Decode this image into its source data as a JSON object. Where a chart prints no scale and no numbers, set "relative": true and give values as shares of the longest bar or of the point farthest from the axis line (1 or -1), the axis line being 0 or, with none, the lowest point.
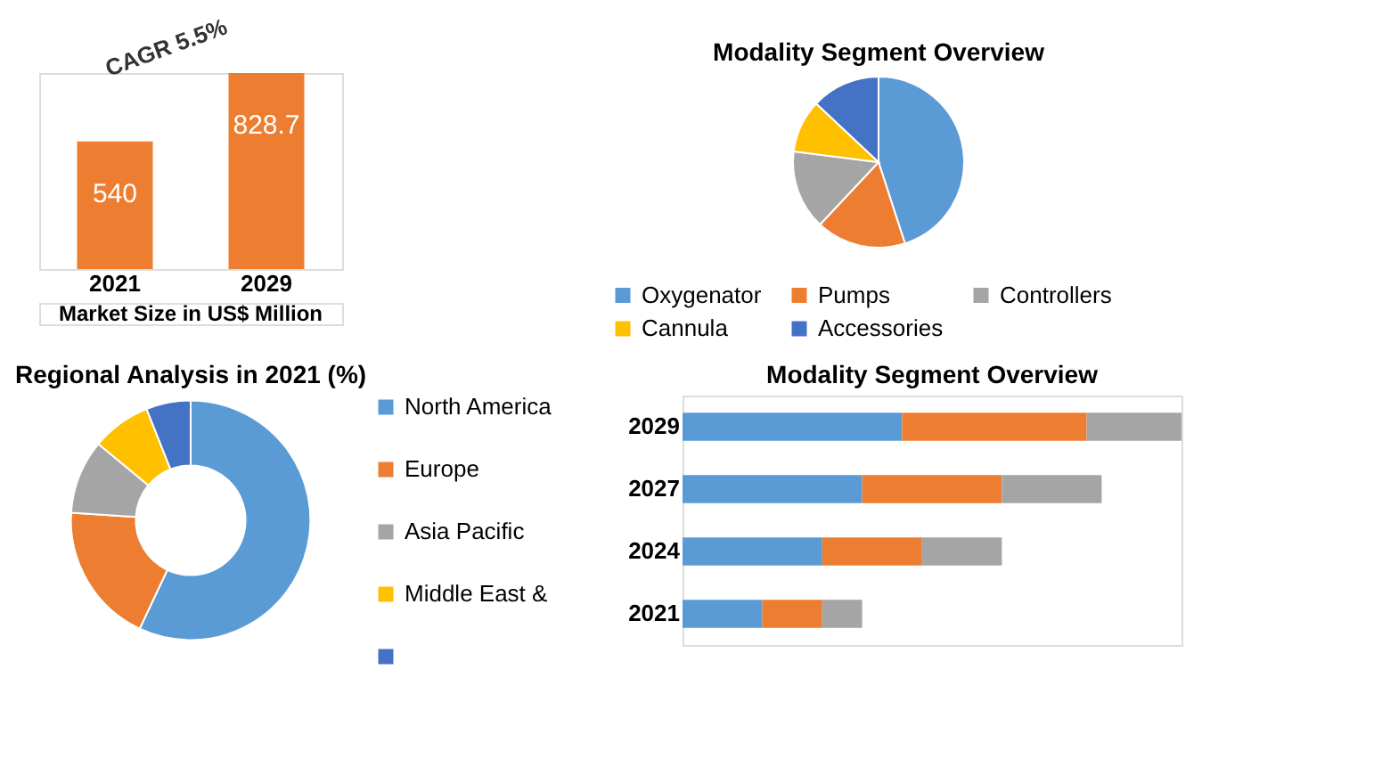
{
  "chart_data": [
    {
      "type": "bar",
      "categories": [
        "2021",
        "2029"
      ],
      "values": [
        540,
        828.7
      ],
      "color": "#ed7d31",
      "xlabel": "Market Size in US$ Million",
      "annotations": [
        "CAGR 5.5%"
      ],
      "data_labels": true,
      "tick_labels": "x",
      "grid": false
    },
    {
      "type": "pie",
      "title": "Modality  Segment Overview",
      "categories": [
        "Oxygenator",
        "Pumps",
        "Controllers",
        "Cannula",
        "Accessories"
      ],
      "values": [
        45,
        17,
        15,
        10,
        13
      ],
      "colors": [
        "#5b9bd5",
        "#ed7d31",
        "#a5a5a5",
        "#ffc000",
        "#4472c4"
      ],
      "legend": "bottom"
    },
    {
      "type": "donut",
      "title": "Regional Analysis in 2021 (%)",
      "categories": [
        "North America",
        "Europe",
        "Asia Pacific",
        "Middle East &",
        null
      ],
      "values": [
        57,
        19,
        10,
        8,
        6
      ],
      "colors": [
        "#5b9bd5",
        "#ed7d31",
        "#a5a5a5",
        "#ffc000",
        "#4472c4"
      ],
      "legend": "right"
    },
    {
      "type": "bar",
      "title": "Modality  Segment Overview",
      "orientation": "horizontal",
      "stacked": true,
      "relative": true,
      "categories": [
        "2029",
        "2027",
        "2024",
        "2021"
      ],
      "series": [
        {
          "color": "#5b9bd5",
          "values": [
            0.44,
            0.36,
            0.28,
            0.16
          ]
        },
        {
          "color": "#ed7d31",
          "values": [
            0.37,
            0.28,
            0.2,
            0.12
          ]
        },
        {
          "color": "#a5a5a5",
          "values": [
            0.19,
            0.2,
            0.16,
            0.08
          ]
        }
      ]
    }
  ]
}
